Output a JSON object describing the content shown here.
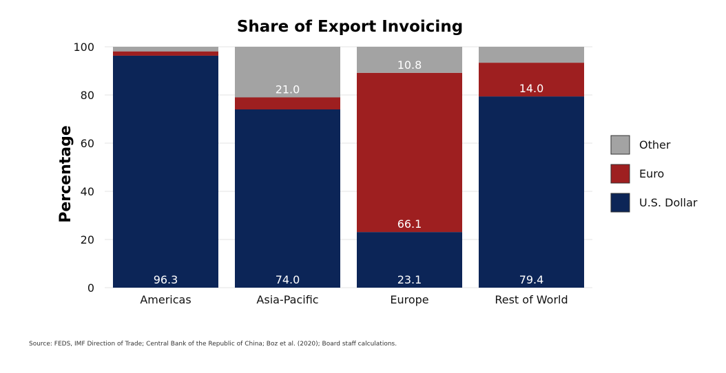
{
  "chart_data": {
    "type": "bar",
    "stacked": true,
    "title": "Share of Export Invoicing",
    "xlabel": "",
    "ylabel": "Percentage",
    "ylim": [
      0,
      100
    ],
    "yticks": [
      0,
      20,
      40,
      60,
      80,
      100
    ],
    "ytick_labels": [
      "0",
      "20",
      "40",
      "60",
      "80",
      "100"
    ],
    "grid": true,
    "legend_position": "right",
    "categories": [
      "Americas",
      "Asia-Pacific",
      "Europe",
      "Rest of World"
    ],
    "series": [
      {
        "name": "U.S. Dollar",
        "color": "#0c2557",
        "values": [
          96.3,
          74.0,
          23.1,
          79.4
        ],
        "labels": [
          "96.3",
          "74.0",
          "23.1",
          "79.4"
        ]
      },
      {
        "name": "Euro",
        "color": "#9e1f20",
        "values": [
          1.8,
          5.0,
          66.1,
          14.0
        ],
        "labels": [
          "",
          "",
          "66.1",
          "14.0"
        ]
      },
      {
        "name": "Other",
        "color": "#a3a3a3",
        "values": [
          1.9,
          21.0,
          10.8,
          6.6
        ],
        "labels": [
          "",
          "21.0",
          "10.8",
          ""
        ]
      }
    ],
    "legend_order": [
      "Other",
      "Euro",
      "U.S. Dollar"
    ]
  },
  "source": "Source: FEDS, IMF Direction of Trade; Central Bank of the Republic of China; Boz et al. (2020); Board staff calculations."
}
